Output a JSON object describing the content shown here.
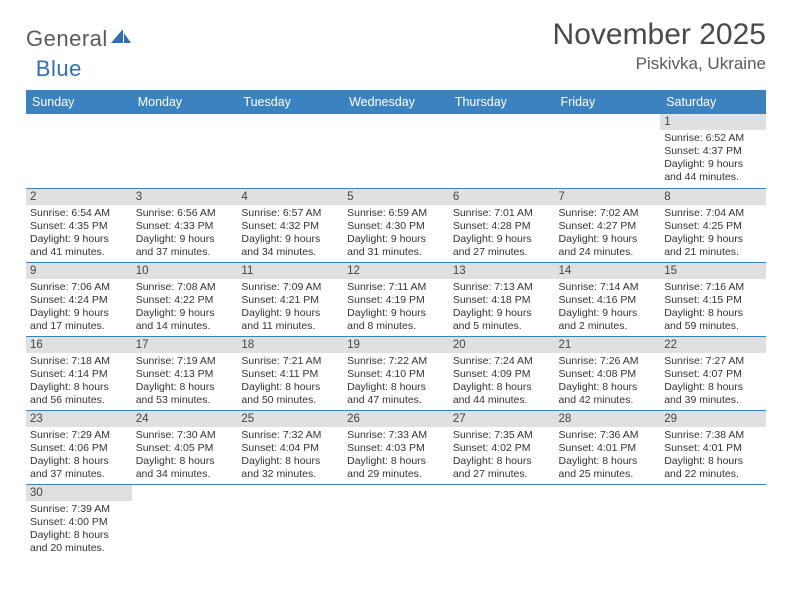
{
  "logo": {
    "text1": "General",
    "text2": "Blue"
  },
  "title": "November 2025",
  "location": "Piskivka, Ukraine",
  "colors": {
    "header_bg": "#3b83c0",
    "header_text": "#ffffff",
    "daynum_bg": "#e0e0e0",
    "rule": "#3b83c0",
    "title_color": "#4a4a4a",
    "logo_gray": "#5a5a5a",
    "logo_blue": "#2f6fb0"
  },
  "weekdays": [
    "Sunday",
    "Monday",
    "Tuesday",
    "Wednesday",
    "Thursday",
    "Friday",
    "Saturday"
  ],
  "weeks": [
    [
      null,
      null,
      null,
      null,
      null,
      null,
      {
        "n": "1",
        "sr": "Sunrise: 6:52 AM",
        "ss": "Sunset: 4:37 PM",
        "dl": "Daylight: 9 hours and 44 minutes."
      }
    ],
    [
      {
        "n": "2",
        "sr": "Sunrise: 6:54 AM",
        "ss": "Sunset: 4:35 PM",
        "dl": "Daylight: 9 hours and 41 minutes."
      },
      {
        "n": "3",
        "sr": "Sunrise: 6:56 AM",
        "ss": "Sunset: 4:33 PM",
        "dl": "Daylight: 9 hours and 37 minutes."
      },
      {
        "n": "4",
        "sr": "Sunrise: 6:57 AM",
        "ss": "Sunset: 4:32 PM",
        "dl": "Daylight: 9 hours and 34 minutes."
      },
      {
        "n": "5",
        "sr": "Sunrise: 6:59 AM",
        "ss": "Sunset: 4:30 PM",
        "dl": "Daylight: 9 hours and 31 minutes."
      },
      {
        "n": "6",
        "sr": "Sunrise: 7:01 AM",
        "ss": "Sunset: 4:28 PM",
        "dl": "Daylight: 9 hours and 27 minutes."
      },
      {
        "n": "7",
        "sr": "Sunrise: 7:02 AM",
        "ss": "Sunset: 4:27 PM",
        "dl": "Daylight: 9 hours and 24 minutes."
      },
      {
        "n": "8",
        "sr": "Sunrise: 7:04 AM",
        "ss": "Sunset: 4:25 PM",
        "dl": "Daylight: 9 hours and 21 minutes."
      }
    ],
    [
      {
        "n": "9",
        "sr": "Sunrise: 7:06 AM",
        "ss": "Sunset: 4:24 PM",
        "dl": "Daylight: 9 hours and 17 minutes."
      },
      {
        "n": "10",
        "sr": "Sunrise: 7:08 AM",
        "ss": "Sunset: 4:22 PM",
        "dl": "Daylight: 9 hours and 14 minutes."
      },
      {
        "n": "11",
        "sr": "Sunrise: 7:09 AM",
        "ss": "Sunset: 4:21 PM",
        "dl": "Daylight: 9 hours and 11 minutes."
      },
      {
        "n": "12",
        "sr": "Sunrise: 7:11 AM",
        "ss": "Sunset: 4:19 PM",
        "dl": "Daylight: 9 hours and 8 minutes."
      },
      {
        "n": "13",
        "sr": "Sunrise: 7:13 AM",
        "ss": "Sunset: 4:18 PM",
        "dl": "Daylight: 9 hours and 5 minutes."
      },
      {
        "n": "14",
        "sr": "Sunrise: 7:14 AM",
        "ss": "Sunset: 4:16 PM",
        "dl": "Daylight: 9 hours and 2 minutes."
      },
      {
        "n": "15",
        "sr": "Sunrise: 7:16 AM",
        "ss": "Sunset: 4:15 PM",
        "dl": "Daylight: 8 hours and 59 minutes."
      }
    ],
    [
      {
        "n": "16",
        "sr": "Sunrise: 7:18 AM",
        "ss": "Sunset: 4:14 PM",
        "dl": "Daylight: 8 hours and 56 minutes."
      },
      {
        "n": "17",
        "sr": "Sunrise: 7:19 AM",
        "ss": "Sunset: 4:13 PM",
        "dl": "Daylight: 8 hours and 53 minutes."
      },
      {
        "n": "18",
        "sr": "Sunrise: 7:21 AM",
        "ss": "Sunset: 4:11 PM",
        "dl": "Daylight: 8 hours and 50 minutes."
      },
      {
        "n": "19",
        "sr": "Sunrise: 7:22 AM",
        "ss": "Sunset: 4:10 PM",
        "dl": "Daylight: 8 hours and 47 minutes."
      },
      {
        "n": "20",
        "sr": "Sunrise: 7:24 AM",
        "ss": "Sunset: 4:09 PM",
        "dl": "Daylight: 8 hours and 44 minutes."
      },
      {
        "n": "21",
        "sr": "Sunrise: 7:26 AM",
        "ss": "Sunset: 4:08 PM",
        "dl": "Daylight: 8 hours and 42 minutes."
      },
      {
        "n": "22",
        "sr": "Sunrise: 7:27 AM",
        "ss": "Sunset: 4:07 PM",
        "dl": "Daylight: 8 hours and 39 minutes."
      }
    ],
    [
      {
        "n": "23",
        "sr": "Sunrise: 7:29 AM",
        "ss": "Sunset: 4:06 PM",
        "dl": "Daylight: 8 hours and 37 minutes."
      },
      {
        "n": "24",
        "sr": "Sunrise: 7:30 AM",
        "ss": "Sunset: 4:05 PM",
        "dl": "Daylight: 8 hours and 34 minutes."
      },
      {
        "n": "25",
        "sr": "Sunrise: 7:32 AM",
        "ss": "Sunset: 4:04 PM",
        "dl": "Daylight: 8 hours and 32 minutes."
      },
      {
        "n": "26",
        "sr": "Sunrise: 7:33 AM",
        "ss": "Sunset: 4:03 PM",
        "dl": "Daylight: 8 hours and 29 minutes."
      },
      {
        "n": "27",
        "sr": "Sunrise: 7:35 AM",
        "ss": "Sunset: 4:02 PM",
        "dl": "Daylight: 8 hours and 27 minutes."
      },
      {
        "n": "28",
        "sr": "Sunrise: 7:36 AM",
        "ss": "Sunset: 4:01 PM",
        "dl": "Daylight: 8 hours and 25 minutes."
      },
      {
        "n": "29",
        "sr": "Sunrise: 7:38 AM",
        "ss": "Sunset: 4:01 PM",
        "dl": "Daylight: 8 hours and 22 minutes."
      }
    ],
    [
      {
        "n": "30",
        "sr": "Sunrise: 7:39 AM",
        "ss": "Sunset: 4:00 PM",
        "dl": "Daylight: 8 hours and 20 minutes."
      },
      null,
      null,
      null,
      null,
      null,
      null
    ]
  ]
}
